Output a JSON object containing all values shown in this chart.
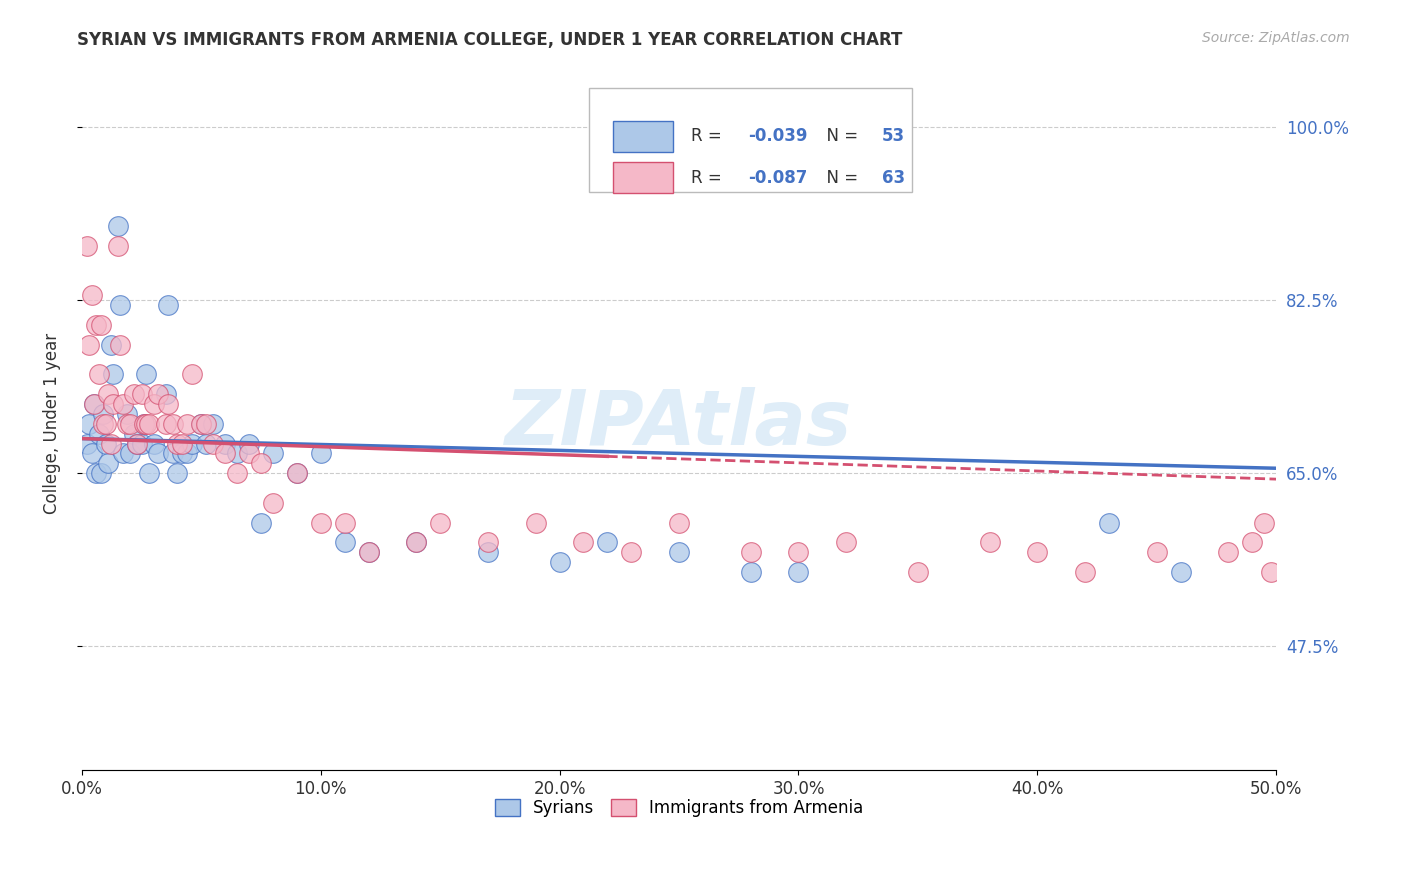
{
  "title": "SYRIAN VS IMMIGRANTS FROM ARMENIA COLLEGE, UNDER 1 YEAR CORRELATION CHART",
  "source": "Source: ZipAtlas.com",
  "ylabel_label": "College, Under 1 year",
  "xlim": [
    0.0,
    0.5
  ],
  "ylim": [
    0.35,
    1.05
  ],
  "syrians_R": -0.039,
  "syrians_N": 53,
  "armenia_R": -0.087,
  "armenia_N": 63,
  "syrians_color": "#adc8e8",
  "armenia_color": "#f5b8c8",
  "syrians_line_color": "#4472c4",
  "armenia_line_color": "#d45070",
  "grid_color": "#cccccc",
  "syrians_x": [
    0.002,
    0.003,
    0.004,
    0.005,
    0.006,
    0.007,
    0.008,
    0.009,
    0.01,
    0.011,
    0.012,
    0.013,
    0.015,
    0.016,
    0.017,
    0.019,
    0.02,
    0.022,
    0.023,
    0.025,
    0.026,
    0.027,
    0.028,
    0.03,
    0.032,
    0.035,
    0.036,
    0.038,
    0.04,
    0.042,
    0.044,
    0.046,
    0.05,
    0.052,
    0.055,
    0.06,
    0.065,
    0.07,
    0.075,
    0.08,
    0.09,
    0.1,
    0.11,
    0.12,
    0.14,
    0.17,
    0.2,
    0.22,
    0.25,
    0.28,
    0.3,
    0.43,
    0.46
  ],
  "syrians_y": [
    0.68,
    0.7,
    0.67,
    0.72,
    0.65,
    0.69,
    0.65,
    0.71,
    0.68,
    0.66,
    0.78,
    0.75,
    0.9,
    0.82,
    0.67,
    0.71,
    0.67,
    0.69,
    0.68,
    0.68,
    0.7,
    0.75,
    0.65,
    0.68,
    0.67,
    0.73,
    0.82,
    0.67,
    0.65,
    0.67,
    0.67,
    0.68,
    0.7,
    0.68,
    0.7,
    0.68,
    0.67,
    0.68,
    0.6,
    0.67,
    0.65,
    0.67,
    0.58,
    0.57,
    0.58,
    0.57,
    0.56,
    0.58,
    0.57,
    0.55,
    0.55,
    0.6,
    0.55
  ],
  "armenia_x": [
    0.002,
    0.003,
    0.004,
    0.005,
    0.006,
    0.007,
    0.008,
    0.009,
    0.01,
    0.011,
    0.012,
    0.013,
    0.015,
    0.016,
    0.017,
    0.019,
    0.02,
    0.022,
    0.023,
    0.025,
    0.026,
    0.027,
    0.028,
    0.03,
    0.032,
    0.035,
    0.036,
    0.038,
    0.04,
    0.042,
    0.044,
    0.046,
    0.05,
    0.052,
    0.055,
    0.06,
    0.065,
    0.07,
    0.075,
    0.08,
    0.09,
    0.1,
    0.11,
    0.12,
    0.14,
    0.15,
    0.17,
    0.19,
    0.21,
    0.23,
    0.25,
    0.28,
    0.3,
    0.32,
    0.35,
    0.38,
    0.4,
    0.42,
    0.45,
    0.48,
    0.49,
    0.495,
    0.498
  ],
  "armenia_y": [
    0.88,
    0.78,
    0.83,
    0.72,
    0.8,
    0.75,
    0.8,
    0.7,
    0.7,
    0.73,
    0.68,
    0.72,
    0.88,
    0.78,
    0.72,
    0.7,
    0.7,
    0.73,
    0.68,
    0.73,
    0.7,
    0.7,
    0.7,
    0.72,
    0.73,
    0.7,
    0.72,
    0.7,
    0.68,
    0.68,
    0.7,
    0.75,
    0.7,
    0.7,
    0.68,
    0.67,
    0.65,
    0.67,
    0.66,
    0.62,
    0.65,
    0.6,
    0.6,
    0.57,
    0.58,
    0.6,
    0.58,
    0.6,
    0.58,
    0.57,
    0.6,
    0.57,
    0.57,
    0.58,
    0.55,
    0.58,
    0.57,
    0.55,
    0.57,
    0.57,
    0.58,
    0.6,
    0.55
  ]
}
